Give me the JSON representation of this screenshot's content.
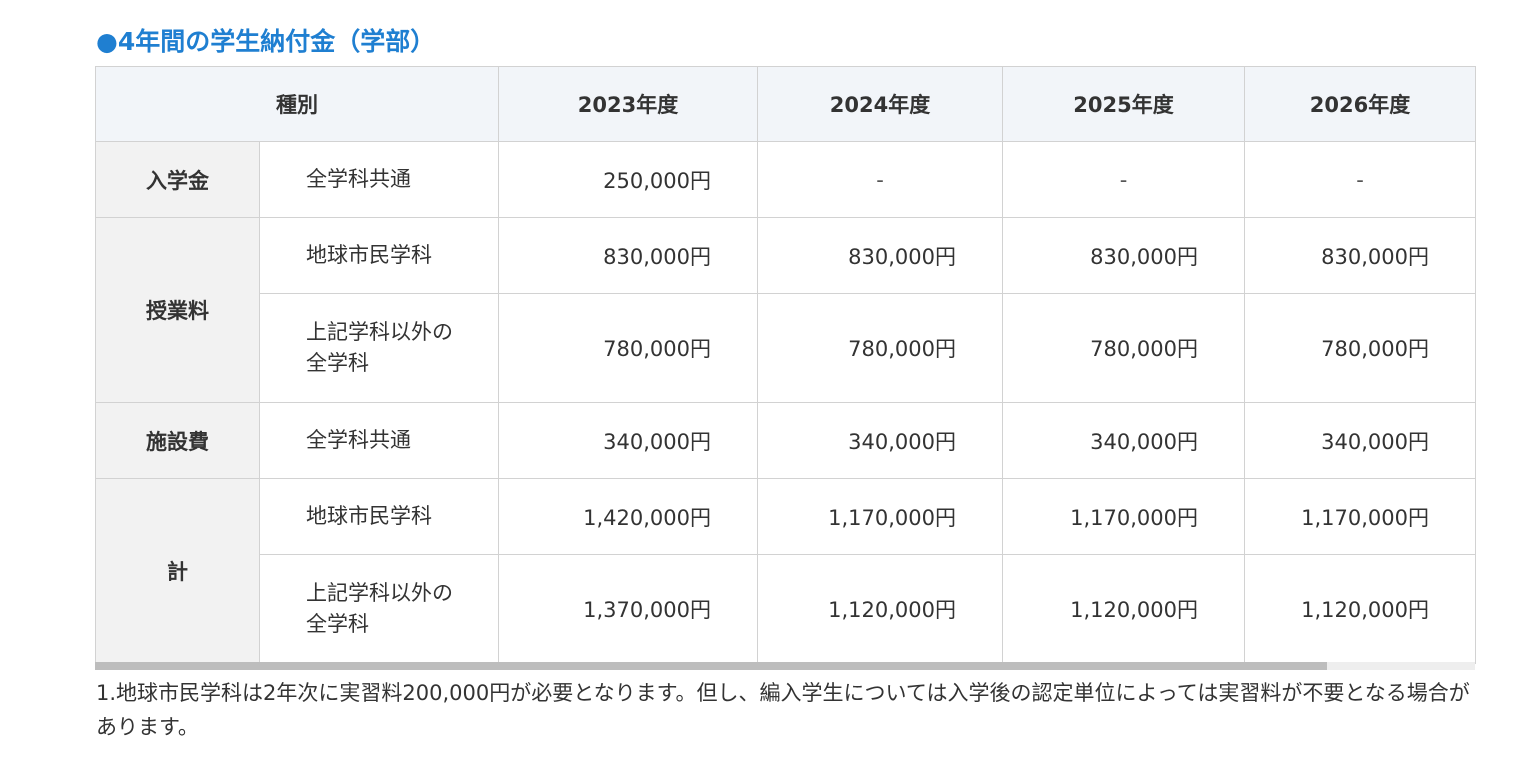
{
  "heading": "●4年間の学生納付金（学部）",
  "table": {
    "header": {
      "category": "種別",
      "years": [
        "2023年度",
        "2024年度",
        "2025年度",
        "2026年度"
      ]
    },
    "groups": [
      {
        "category": "入学金",
        "rows": [
          {
            "label": "全学科共通",
            "values": [
              "250,000円",
              "-",
              "-",
              "-"
            ]
          }
        ]
      },
      {
        "category": "授業料",
        "rows": [
          {
            "label": "地球市民学科",
            "values": [
              "830,000円",
              "830,000円",
              "830,000円",
              "830,000円"
            ]
          },
          {
            "label": "上記学科以外の全学科",
            "values": [
              "780,000円",
              "780,000円",
              "780,000円",
              "780,000円"
            ]
          }
        ]
      },
      {
        "category": "施設費",
        "rows": [
          {
            "label": "全学科共通",
            "values": [
              "340,000円",
              "340,000円",
              "340,000円",
              "340,000円"
            ]
          }
        ]
      },
      {
        "category": "計",
        "rows": [
          {
            "label": "地球市民学科",
            "values": [
              "1,420,000円",
              "1,170,000円",
              "1,170,000円",
              "1,170,000円"
            ]
          },
          {
            "label": "上記学科以外の全学科",
            "values": [
              "1,370,000円",
              "1,120,000円",
              "1,120,000円",
              "1,120,000円"
            ]
          }
        ]
      }
    ]
  },
  "note": "1.地球市民学科は2年次に実習料200,000円が必要となります。但し、編入学生については入学後の認定単位によっては実習料が不要となる場合があります。"
}
